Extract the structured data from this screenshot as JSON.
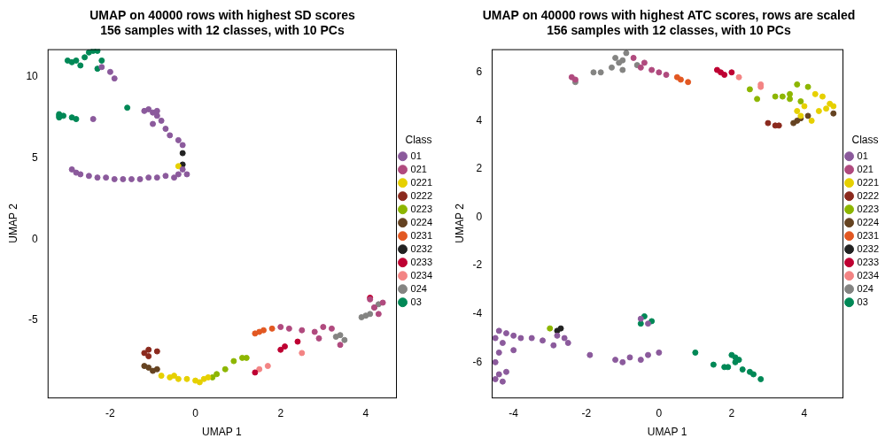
{
  "chart_data": [
    {
      "type": "scatter",
      "title": [
        "UMAP on 40000 rows with highest SD scores",
        "156 samples with 12 classes, with 10 PCs"
      ],
      "x_label": "UMAP 1",
      "y_label": "UMAP 2",
      "xlim": [
        -3.47,
        4.71
      ],
      "ylim": [
        -9.74,
        11.7
      ],
      "xticks": [
        -2,
        0,
        2,
        4
      ],
      "yticks": [
        -5,
        0,
        5,
        10
      ],
      "grid": false,
      "legend": "right",
      "legend_title": "Class",
      "series": [
        {
          "name": "01",
          "color": "#8b5a9c",
          "values": [
            [
              -2.9,
              4.3
            ],
            [
              -2.8,
              4.1
            ],
            [
              -2.7,
              4.0
            ],
            [
              -2.5,
              3.9
            ],
            [
              -2.3,
              3.8
            ],
            [
              -2.1,
              3.8
            ],
            [
              -1.9,
              3.7
            ],
            [
              -1.7,
              3.7
            ],
            [
              -1.5,
              3.7
            ],
            [
              -1.3,
              3.7
            ],
            [
              -1.1,
              3.8
            ],
            [
              -0.9,
              3.8
            ],
            [
              -0.7,
              3.9
            ],
            [
              -0.5,
              3.8
            ],
            [
              -0.4,
              4.0
            ],
            [
              -0.3,
              4.3
            ],
            [
              -0.2,
              4.0
            ],
            [
              -1.1,
              8.0
            ],
            [
              -1.0,
              7.8
            ],
            [
              -1.2,
              7.9
            ],
            [
              -0.9,
              7.6
            ],
            [
              -0.8,
              7.3
            ],
            [
              -1.0,
              7.1
            ],
            [
              -0.7,
              6.8
            ],
            [
              -0.6,
              6.4
            ],
            [
              -0.4,
              6.1
            ],
            [
              -0.3,
              5.8
            ],
            [
              -0.9,
              7.9
            ],
            [
              -2.4,
              7.4
            ],
            [
              -1.9,
              9.9
            ],
            [
              -2.2,
              10.6
            ],
            [
              -2.0,
              10.3
            ]
          ]
        },
        {
          "name": "021",
          "color": "#b04a7e",
          "values": [
            [
              2.0,
              -5.4
            ],
            [
              2.2,
              -5.5
            ],
            [
              2.5,
              -5.6
            ],
            [
              2.8,
              -5.7
            ],
            [
              3.0,
              -5.4
            ],
            [
              3.2,
              -5.5
            ],
            [
              4.1,
              -3.7
            ],
            [
              4.3,
              -4.6
            ],
            [
              4.2,
              -4.2
            ],
            [
              4.4,
              -3.9
            ],
            [
              3.4,
              -6.5
            ],
            [
              2.9,
              -6.1
            ]
          ]
        },
        {
          "name": "0221",
          "color": "#e6d000",
          "values": [
            [
              -0.4,
              4.5
            ],
            [
              -0.8,
              -8.4
            ],
            [
              -0.6,
              -8.5
            ],
            [
              -0.4,
              -8.6
            ],
            [
              -0.2,
              -8.6
            ],
            [
              0.0,
              -8.7
            ],
            [
              0.1,
              -8.8
            ],
            [
              0.2,
              -8.6
            ],
            [
              0.3,
              -8.5
            ],
            [
              -0.5,
              -8.4
            ]
          ]
        },
        {
          "name": "0222",
          "color": "#8b2a1e",
          "values": [
            [
              -1.1,
              -6.8
            ],
            [
              -0.9,
              -6.9
            ],
            [
              -1.1,
              -7.2
            ],
            [
              -1.2,
              -7.0
            ]
          ]
        },
        {
          "name": "0223",
          "color": "#8db600",
          "values": [
            [
              0.4,
              -8.5
            ],
            [
              0.5,
              -8.3
            ],
            [
              0.7,
              -8.0
            ],
            [
              0.9,
              -7.5
            ],
            [
              1.1,
              -7.3
            ],
            [
              1.2,
              -7.3
            ]
          ]
        },
        {
          "name": "0224",
          "color": "#654321",
          "values": [
            [
              -1.1,
              -7.9
            ],
            [
              -0.9,
              -8.0
            ],
            [
              -1.0,
              -8.1
            ],
            [
              -1.2,
              -7.8
            ]
          ]
        },
        {
          "name": "0231",
          "color": "#e25822",
          "values": [
            [
              1.4,
              -5.8
            ],
            [
              1.5,
              -5.7
            ],
            [
              1.6,
              -5.6
            ],
            [
              1.8,
              -5.5
            ]
          ]
        },
        {
          "name": "0232",
          "color": "#222222",
          "values": [
            [
              -0.3,
              5.3
            ],
            [
              -0.3,
              4.6
            ]
          ]
        },
        {
          "name": "0233",
          "color": "#be0032",
          "values": [
            [
              1.4,
              -8.2
            ],
            [
              2.0,
              -6.8
            ],
            [
              2.1,
              -6.6
            ],
            [
              2.4,
              -6.3
            ],
            [
              4.1,
              -3.6
            ]
          ]
        },
        {
          "name": "0234",
          "color": "#f38484",
          "values": [
            [
              1.5,
              -8.0
            ],
            [
              1.7,
              -7.8
            ],
            [
              2.5,
              -7.0
            ]
          ]
        },
        {
          "name": "024",
          "color": "#848482",
          "values": [
            [
              3.4,
              -5.9
            ],
            [
              3.5,
              -6.2
            ],
            [
              3.3,
              -6.0
            ],
            [
              4.1,
              -4.6
            ],
            [
              4.0,
              -4.7
            ],
            [
              4.3,
              -4.0
            ],
            [
              4.2,
              -4.2
            ],
            [
              3.9,
              -4.8
            ]
          ]
        },
        {
          "name": "03",
          "color": "#008856",
          "values": [
            [
              -2.4,
              11.6
            ],
            [
              -2.5,
              11.5
            ],
            [
              -2.3,
              11.6
            ],
            [
              -2.6,
              11.2
            ],
            [
              -2.9,
              10.9
            ],
            [
              -3.0,
              11.0
            ],
            [
              -2.8,
              11.0
            ],
            [
              -2.2,
              11.0
            ],
            [
              -2.7,
              10.7
            ],
            [
              -2.3,
              10.5
            ],
            [
              -3.2,
              7.7
            ],
            [
              -3.2,
              7.6
            ],
            [
              -3.1,
              7.6
            ],
            [
              -3.2,
              7.5
            ],
            [
              -2.9,
              7.5
            ],
            [
              -2.8,
              7.4
            ],
            [
              -1.6,
              8.1
            ]
          ]
        }
      ]
    },
    {
      "type": "scatter",
      "title": [
        "UMAP on 40000 rows with highest ATC scores, rows are scaled",
        "156 samples with 12 classes, with 10 PCs"
      ],
      "x_label": "UMAP 1",
      "y_label": "UMAP 2",
      "xlim": [
        -4.6,
        5.05
      ],
      "ylim": [
        -7.46,
        6.96
      ],
      "xticks": [
        -4,
        -2,
        0,
        2,
        4
      ],
      "yticks": [
        -6,
        -4,
        -2,
        0,
        2,
        4,
        6
      ],
      "grid": false,
      "legend": "right",
      "legend_title": "Class",
      "series": [
        {
          "name": "01",
          "color": "#8b5a9c",
          "values": [
            [
              -4.5,
              -6.7
            ],
            [
              -4.3,
              -6.8
            ],
            [
              -4.4,
              -6.5
            ],
            [
              -4.2,
              -6.4
            ],
            [
              -4.5,
              -6.0
            ],
            [
              -4.4,
              -5.6
            ],
            [
              -4.3,
              -5.2
            ],
            [
              -4.5,
              -5.0
            ],
            [
              -4.4,
              -4.7
            ],
            [
              -4.2,
              -4.8
            ],
            [
              -4.0,
              -4.9
            ],
            [
              -3.8,
              -5.0
            ],
            [
              -3.5,
              -5.0
            ],
            [
              -3.2,
              -5.1
            ],
            [
              -2.8,
              -4.9
            ],
            [
              -2.6,
              -5.0
            ],
            [
              -2.5,
              -5.2
            ],
            [
              -2.9,
              -5.3
            ],
            [
              -1.9,
              -5.7
            ],
            [
              -1.2,
              -5.9
            ],
            [
              -1.0,
              -6.0
            ],
            [
              -0.8,
              -5.8
            ],
            [
              -0.5,
              -5.9
            ],
            [
              -0.3,
              -5.7
            ],
            [
              0.0,
              -5.6
            ],
            [
              -0.5,
              -4.2
            ],
            [
              -0.3,
              -4.4
            ],
            [
              -4.0,
              -5.5
            ]
          ]
        },
        {
          "name": "021",
          "color": "#b04a7e",
          "values": [
            [
              -2.4,
              5.8
            ],
            [
              -2.3,
              5.7
            ],
            [
              -0.7,
              6.6
            ],
            [
              -0.5,
              6.2
            ],
            [
              -0.2,
              6.1
            ],
            [
              0.0,
              6.0
            ],
            [
              0.2,
              5.9
            ],
            [
              -0.4,
              6.4
            ]
          ]
        },
        {
          "name": "0221",
          "color": "#e6d000",
          "values": [
            [
              4.3,
              5.1
            ],
            [
              4.5,
              5.0
            ],
            [
              4.7,
              4.7
            ],
            [
              4.6,
              4.5
            ],
            [
              4.4,
              4.4
            ],
            [
              4.2,
              4.0
            ],
            [
              3.9,
              4.2
            ],
            [
              4.0,
              4.6
            ],
            [
              4.8,
              4.6
            ],
            [
              3.8,
              4.4
            ]
          ]
        },
        {
          "name": "0222",
          "color": "#8b2a1e",
          "values": [
            [
              3.0,
              3.9
            ],
            [
              3.2,
              3.8
            ],
            [
              3.3,
              3.8
            ]
          ]
        },
        {
          "name": "0223",
          "color": "#8db600",
          "values": [
            [
              3.2,
              5.0
            ],
            [
              3.4,
              5.0
            ],
            [
              3.6,
              5.1
            ],
            [
              3.8,
              5.5
            ],
            [
              4.1,
              5.4
            ],
            [
              3.9,
              4.8
            ],
            [
              2.5,
              5.3
            ],
            [
              2.7,
              4.9
            ],
            [
              3.6,
              4.9
            ],
            [
              -3.0,
              -4.6
            ]
          ]
        },
        {
          "name": "0224",
          "color": "#654321",
          "values": [
            [
              3.8,
              4.0
            ],
            [
              3.9,
              4.1
            ],
            [
              4.1,
              4.2
            ],
            [
              4.8,
              4.3
            ],
            [
              3.7,
              3.9
            ]
          ]
        },
        {
          "name": "0231",
          "color": "#e25822",
          "values": [
            [
              0.5,
              5.8
            ],
            [
              0.6,
              5.7
            ],
            [
              0.8,
              5.6
            ]
          ]
        },
        {
          "name": "0232",
          "color": "#222222",
          "values": [
            [
              -2.8,
              -4.7
            ],
            [
              -2.7,
              -4.6
            ]
          ]
        },
        {
          "name": "0233",
          "color": "#be0032",
          "values": [
            [
              1.6,
              6.1
            ],
            [
              1.7,
              6.0
            ],
            [
              1.8,
              5.9
            ],
            [
              2.0,
              6.0
            ]
          ]
        },
        {
          "name": "0234",
          "color": "#f38484",
          "values": [
            [
              2.2,
              5.8
            ],
            [
              2.8,
              5.5
            ],
            [
              2.8,
              5.4
            ]
          ]
        },
        {
          "name": "024",
          "color": "#848482",
          "values": [
            [
              -1.0,
              6.5
            ],
            [
              -0.9,
              6.8
            ],
            [
              -1.1,
              6.4
            ],
            [
              -1.3,
              6.2
            ],
            [
              -1.6,
              6.0
            ],
            [
              -1.8,
              6.0
            ],
            [
              -1.2,
              6.6
            ],
            [
              -2.3,
              5.6
            ],
            [
              -1.0,
              6.1
            ],
            [
              -0.6,
              6.3
            ]
          ]
        },
        {
          "name": "03",
          "color": "#008856",
          "values": [
            [
              -0.4,
              -4.1
            ],
            [
              -0.2,
              -4.3
            ],
            [
              -0.5,
              -4.4
            ],
            [
              1.0,
              -5.6
            ],
            [
              1.5,
              -6.1
            ],
            [
              1.8,
              -6.2
            ],
            [
              2.0,
              -5.7
            ],
            [
              2.1,
              -5.8
            ],
            [
              2.2,
              -5.9
            ],
            [
              2.5,
              -6.4
            ],
            [
              2.6,
              -6.5
            ],
            [
              2.8,
              -6.7
            ],
            [
              2.3,
              -6.3
            ],
            [
              1.9,
              -6.2
            ],
            [
              2.1,
              -6.0
            ]
          ]
        }
      ]
    }
  ]
}
